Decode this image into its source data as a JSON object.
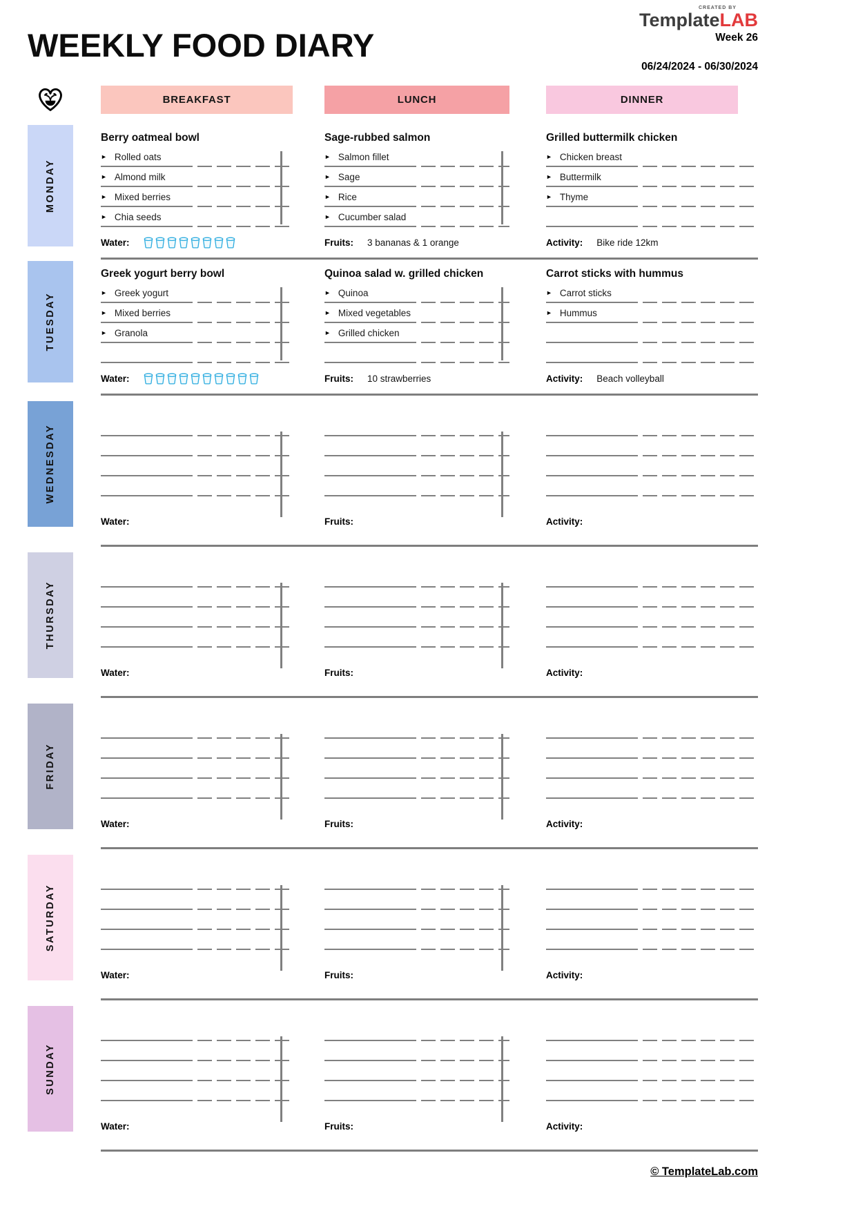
{
  "header": {
    "title": "WEEKLY FOOD DIARY",
    "brand": {
      "created_by": "CREATED BY",
      "name_gray": "Template",
      "name_red": "LAB"
    },
    "week": "Week 26",
    "date_range": "06/24/2024 - 06/30/2024"
  },
  "column_headers": {
    "breakfast": "BREAKFAST",
    "lunch": "LUNCH",
    "dinner": "DINNER"
  },
  "stat_labels": {
    "water": "Water:",
    "fruits": "Fruits:",
    "activity": "Activity:"
  },
  "icons": {
    "bullet": "►",
    "heart_logo": "heart-with-seedling",
    "water_glass": "water-glass"
  },
  "colors": {
    "breakfast_header_bg": "#fbc6be",
    "lunch_header_bg": "#f5a1a5",
    "dinner_header_bg": "#f9c8df",
    "line_gray": "#808080",
    "glass_blue": "#2aabdf",
    "brand_red": "#e23a3c"
  },
  "days": [
    {
      "name": "MONDAY",
      "color": "#cad7f7",
      "breakfast": {
        "title": "Berry oatmeal bowl",
        "items": [
          "Rolled oats",
          "Almond milk",
          "Mixed berries",
          "Chia seeds"
        ]
      },
      "lunch": {
        "title": "Sage-rubbed salmon",
        "items": [
          "Salmon fillet",
          "Sage",
          "Rice",
          "Cucumber salad"
        ]
      },
      "dinner": {
        "title": "Grilled buttermilk chicken",
        "items": [
          "Chicken breast",
          "Buttermilk",
          "Thyme"
        ]
      },
      "water_glasses": 8,
      "fruits": "3 bananas & 1 orange",
      "activity": "Bike ride 12km"
    },
    {
      "name": "TUESDAY",
      "color": "#a9c4ee",
      "breakfast": {
        "title": "Greek yogurt berry bowl",
        "items": [
          "Greek yogurt",
          "Mixed berries",
          "Granola"
        ]
      },
      "lunch": {
        "title": "Quinoa salad w. grilled chicken",
        "items": [
          "Quinoa",
          "Mixed vegetables",
          "Grilled chicken"
        ]
      },
      "dinner": {
        "title": "Carrot sticks with hummus",
        "items": [
          "Carrot sticks",
          "Hummus"
        ]
      },
      "water_glasses": 10,
      "fruits": "10 strawberries",
      "activity": "Beach volleyball"
    },
    {
      "name": "WEDNESDAY",
      "color": "#78a2d6"
    },
    {
      "name": "THURSDAY",
      "color": "#cfd0e3"
    },
    {
      "name": "FRIDAY",
      "color": "#b1b3c8"
    },
    {
      "name": "SATURDAY",
      "color": "#fbdeee"
    },
    {
      "name": "SUNDAY",
      "color": "#e5c0e4"
    }
  ],
  "footer": {
    "copyright": "© TemplateLab.com"
  }
}
